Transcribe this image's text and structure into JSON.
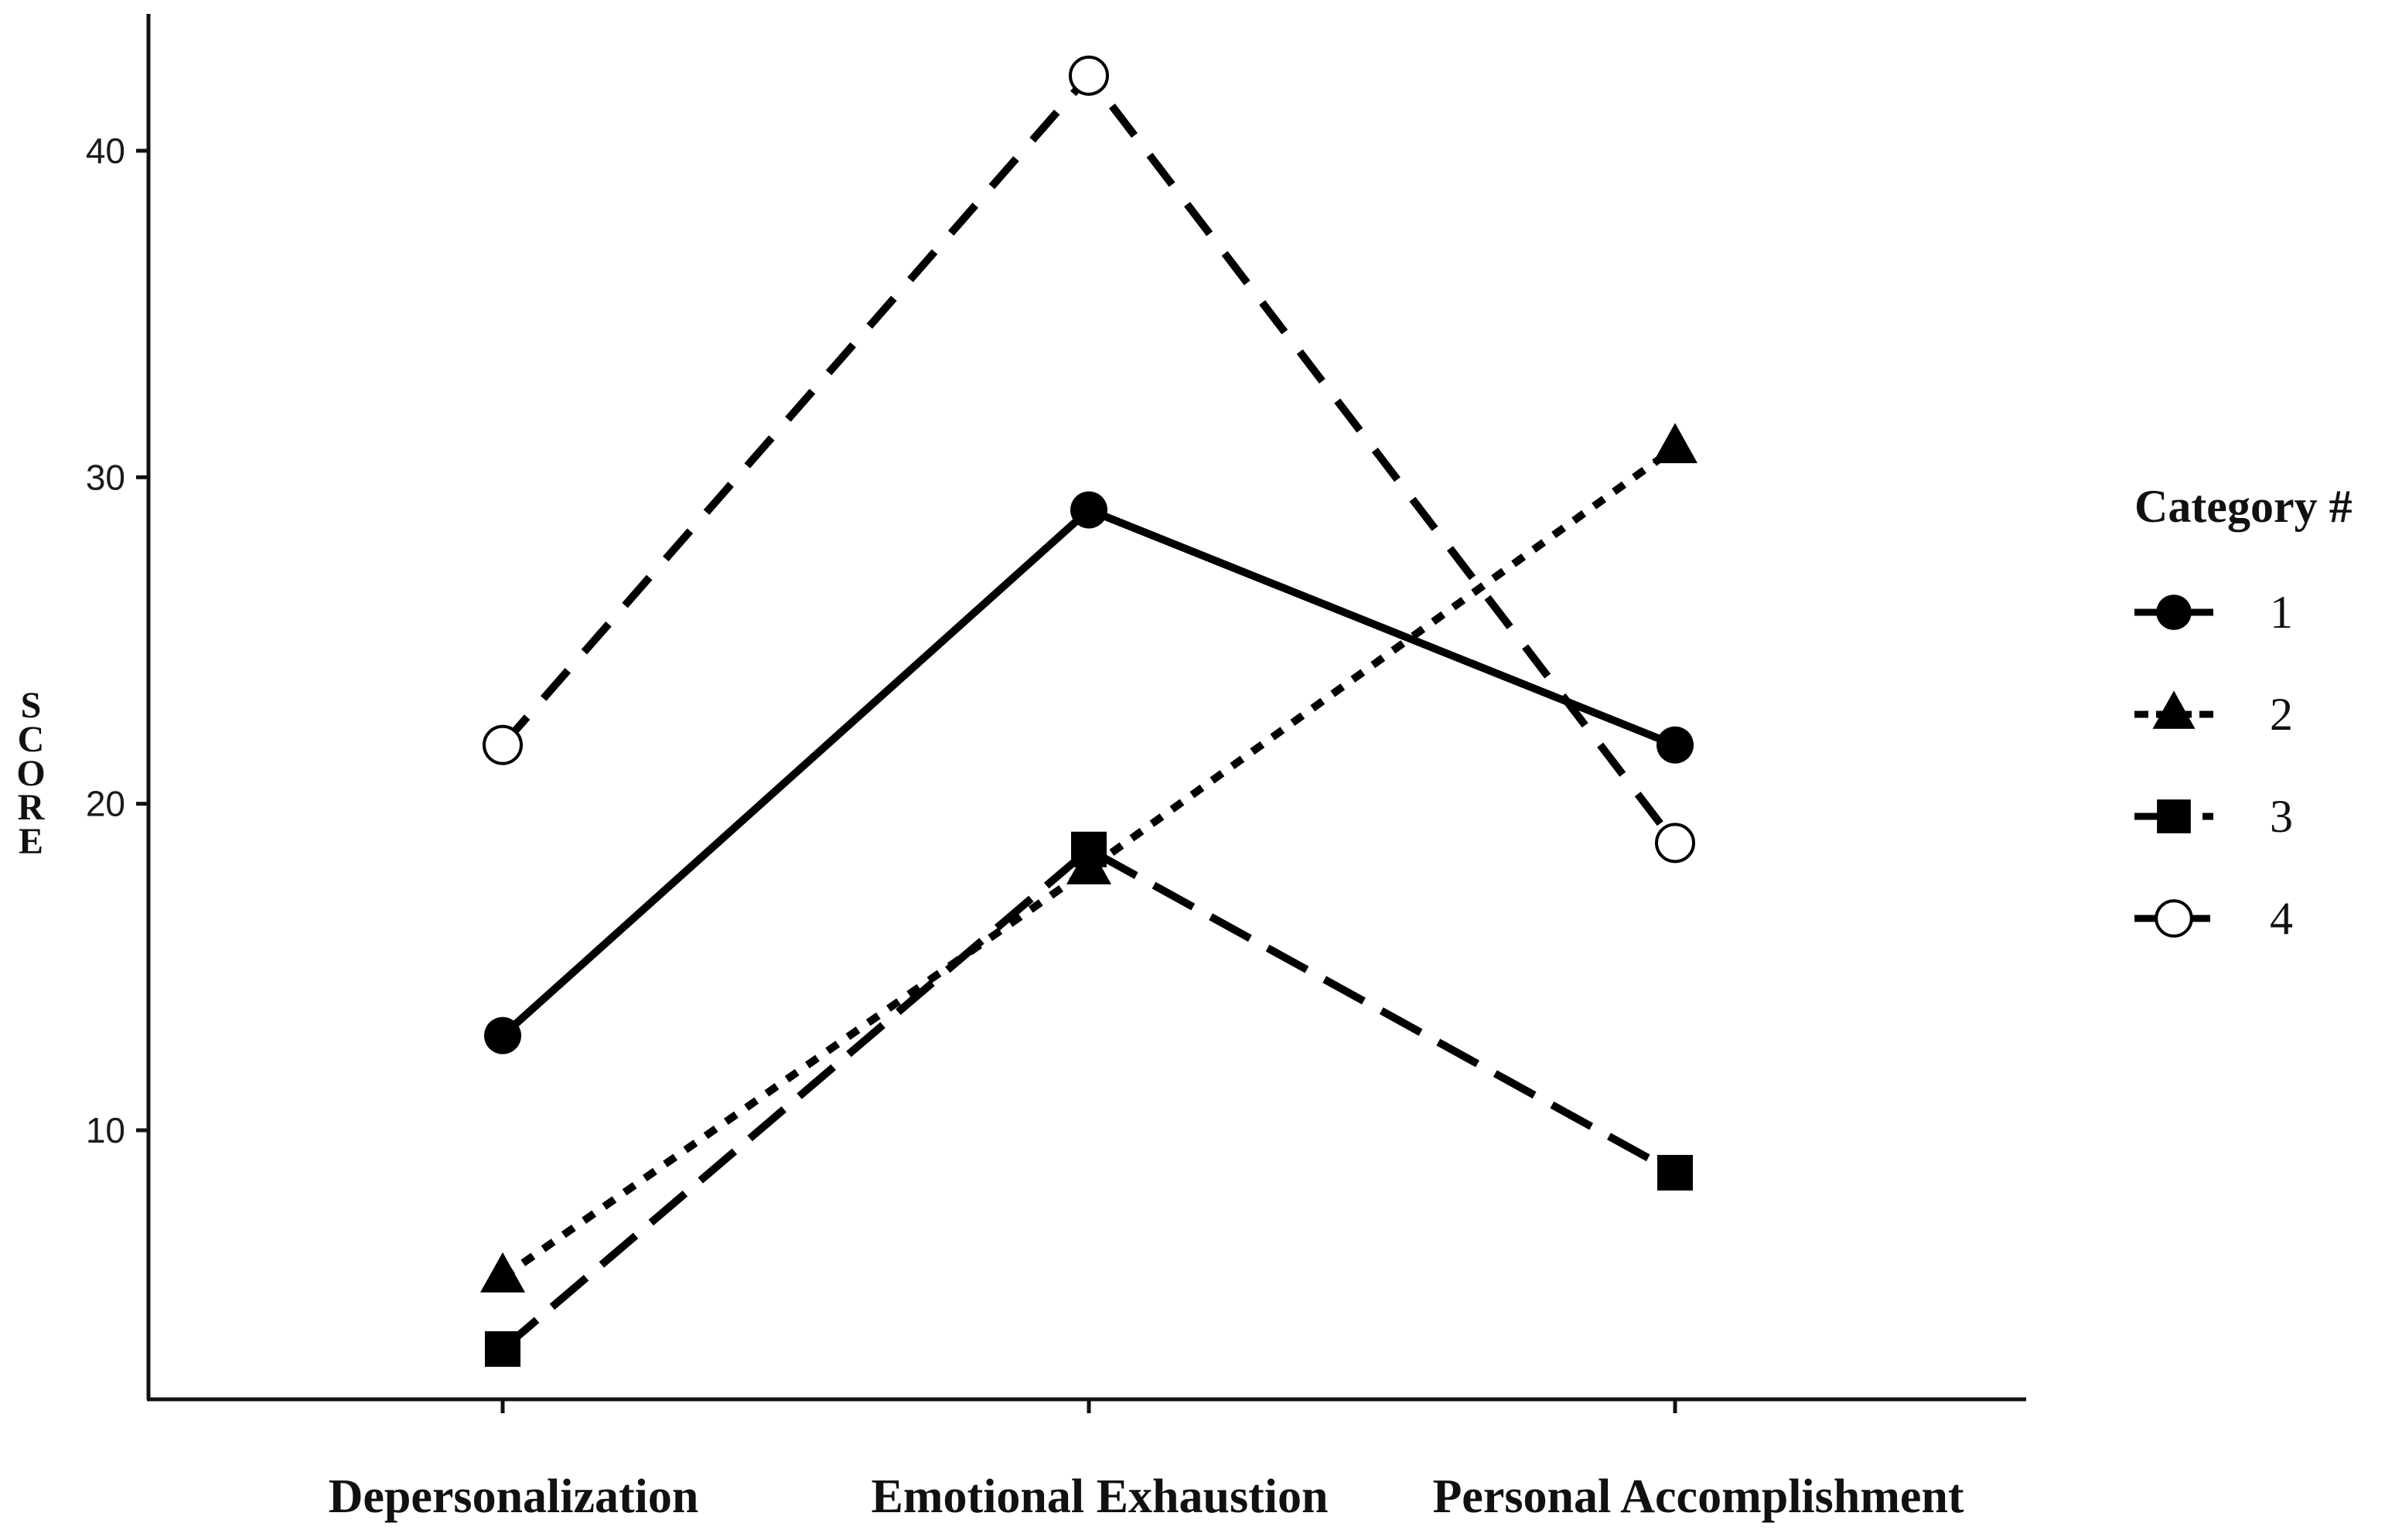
{
  "chart_data": {
    "type": "line",
    "categories": [
      "Depersonalization",
      "Emotional Exhaustion",
      "Personal Accomplishment"
    ],
    "ylabel": "SCORE",
    "ylim": [
      2.5,
      44
    ],
    "yticks": [
      10,
      20,
      30,
      40
    ],
    "grid": false,
    "legend": {
      "title": "Category #",
      "position": "right"
    },
    "series": [
      {
        "name": "1",
        "values": [
          12.9,
          29.0,
          21.8
        ],
        "marker": "filled-circle",
        "line_style": "solid"
      },
      {
        "name": "2",
        "values": [
          5.5,
          18.0,
          30.9
        ],
        "marker": "filled-triangle",
        "line_style": "dotted"
      },
      {
        "name": "3",
        "values": [
          3.3,
          18.6,
          8.7
        ],
        "marker": "filled-square",
        "line_style": "long-dash"
      },
      {
        "name": "4",
        "values": [
          21.8,
          42.3,
          18.8
        ],
        "marker": "open-circle",
        "line_style": "dash"
      }
    ]
  }
}
